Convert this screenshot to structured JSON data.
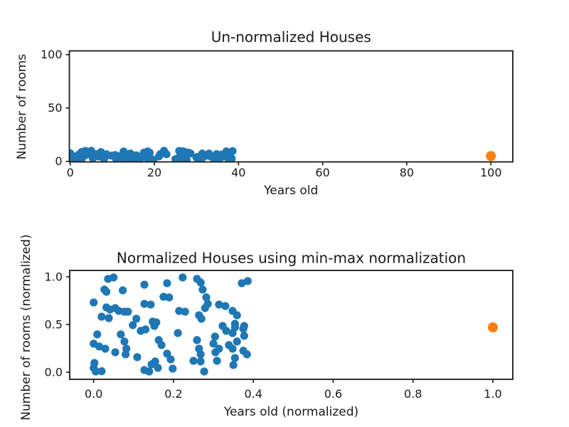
{
  "figure": {
    "background": "#ffffff",
    "description": "Two stacked scatter subplots comparing un-normalized and min-max normalized house data"
  },
  "colors": {
    "houses_blue": "#1f77b4",
    "outlier_orange": "#ff7f0e",
    "axis_black": "#1a1a1a"
  },
  "chart_data": [
    {
      "type": "scatter",
      "title": "Un-normalized Houses",
      "xlabel": "Years old",
      "ylabel": "Number of rooms",
      "xlim": [
        -0.2,
        105.2
      ],
      "ylim": [
        -0.5,
        103.5
      ],
      "xticks": [
        0,
        20,
        40,
        60,
        80,
        100
      ],
      "xtick_labels": [
        "0",
        "20",
        "40",
        "60",
        "80",
        "100"
      ],
      "yticks": [
        0,
        50,
        100
      ],
      "ytick_labels": [
        "0",
        "50",
        "100"
      ],
      "grid": false,
      "legend": "none",
      "series": [
        {
          "name": "houses",
          "color": "#1f77b4",
          "marker_radius": 5.6,
          "points": [
            [
              3.6,
              9.8
            ],
            [
              5.0,
              9.9
            ],
            [
              2.7,
              8.8
            ],
            [
              3.2,
              8.6
            ],
            [
              7.3,
              8.7
            ],
            [
              0.0,
              7.6
            ],
            [
              12.7,
              9.3
            ],
            [
              18.4,
              9.4
            ],
            [
              22.3,
              9.9
            ],
            [
              25.9,
              9.8
            ],
            [
              26.8,
              9.5
            ],
            [
              27.3,
              8.8
            ],
            [
              37.1,
              9.4
            ],
            [
              38.6,
              9.6
            ],
            [
              17.5,
              8.1
            ],
            [
              18.9,
              8.1
            ],
            [
              28.2,
              8.1
            ],
            [
              12.7,
              7.4
            ],
            [
              14.3,
              7.4
            ],
            [
              3.2,
              7.1
            ],
            [
              4.1,
              6.9
            ],
            [
              5.4,
              7.0
            ],
            [
              6.3,
              6.8
            ],
            [
              7.7,
              6.7
            ],
            [
              8.6,
              6.7
            ],
            [
              2.0,
              6.2
            ],
            [
              3.8,
              6.1
            ],
            [
              21.4,
              6.8
            ],
            [
              22.9,
              6.7
            ],
            [
              26.4,
              6.4
            ],
            [
              27.0,
              6.0
            ],
            [
              27.9,
              7.0
            ],
            [
              28.6,
              7.4
            ],
            [
              31.4,
              7.4
            ],
            [
              33.0,
              7.2
            ],
            [
              34.8,
              6.8
            ],
            [
              35.9,
              6.4
            ],
            [
              10.7,
              6.0
            ],
            [
              14.8,
              5.8
            ],
            [
              15.7,
              5.7
            ],
            [
              35.4,
              5.6
            ],
            [
              37.7,
              5.4
            ],
            [
              0.9,
              4.6
            ],
            [
              0.0,
              3.7
            ],
            [
              1.4,
              3.4
            ],
            [
              2.9,
              3.2
            ],
            [
              0.2,
              1.9
            ],
            [
              0.0,
              1.4
            ],
            [
              0.5,
              1.1
            ],
            [
              2.0,
              1.1
            ],
            [
              5.4,
              2.9
            ],
            [
              6.8,
              4.6
            ],
            [
              7.7,
              3.9
            ],
            [
              8.2,
              3.2
            ],
            [
              8.0,
              2.7
            ],
            [
              10.9,
              2.4
            ],
            [
              11.8,
              4.9
            ],
            [
              13.0,
              5.0
            ],
            [
              15.2,
              5.4
            ],
            [
              9.8,
              5.4
            ],
            [
              16.3,
              4.0
            ],
            [
              17.0,
              3.6
            ],
            [
              15.4,
              2.0
            ],
            [
              14.5,
              1.7
            ],
            [
              12.7,
              1.2
            ],
            [
              13.9,
              1.1
            ],
            [
              16.1,
              1.4
            ],
            [
              18.4,
              2.7
            ],
            [
              19.3,
              2.2
            ],
            [
              19.8,
              1.3
            ],
            [
              21.1,
              4.7
            ],
            [
              25.9,
              4.0
            ],
            [
              26.4,
              3.2
            ],
            [
              26.8,
              2.7
            ],
            [
              25.0,
              2.1
            ],
            [
              26.8,
              2.0
            ],
            [
              27.7,
              1.1
            ],
            [
              30.4,
              4.4
            ],
            [
              30.0,
              3.7
            ],
            [
              30.5,
              2.9
            ],
            [
              31.4,
              3.2
            ],
            [
              30.9,
              2.1
            ],
            [
              32.3,
              5.4
            ],
            [
              33.2,
              4.9
            ],
            [
              34.8,
              4.7
            ],
            [
              35.4,
              5.2
            ],
            [
              33.9,
              3.6
            ],
            [
              34.8,
              3.2
            ],
            [
              35.9,
              3.9
            ],
            [
              37.5,
              5.1
            ],
            [
              37.7,
              4.4
            ],
            [
              38.4,
              2.7
            ],
            [
              37.5,
              3.0
            ],
            [
              35.4,
              2.3
            ],
            [
              35.0,
              1.7
            ]
          ]
        },
        {
          "name": "outlier-house",
          "color": "#ff7f0e",
          "marker_radius": 7,
          "points": [
            [
              100,
              5
            ]
          ]
        }
      ]
    },
    {
      "type": "scatter",
      "title": "Normalized Houses using min-max normalization",
      "xlabel": "Years old (normalized)",
      "ylabel": "Number of rooms (normalized)",
      "xlim": [
        -0.06,
        1.05
      ],
      "ylim": [
        -0.075,
        1.067
      ],
      "xticks": [
        0.0,
        0.2,
        0.4,
        0.6,
        0.8,
        1.0
      ],
      "xtick_labels": [
        "0.0",
        "0.2",
        "0.4",
        "0.6",
        "0.8",
        "1.0"
      ],
      "yticks": [
        0.0,
        0.5,
        1.0
      ],
      "ytick_labels": [
        "0.0",
        "0.5",
        "1.0"
      ],
      "grid": false,
      "legend": "none",
      "series": [
        {
          "name": "houses-normalized",
          "color": "#1f77b4",
          "marker_radius": 5.6,
          "points": [
            [
              0.036,
              0.978
            ],
            [
              0.05,
              0.993
            ],
            [
              0.027,
              0.866
            ],
            [
              0.032,
              0.843
            ],
            [
              0.073,
              0.858
            ],
            [
              0.0,
              0.731
            ],
            [
              0.127,
              0.918
            ],
            [
              0.184,
              0.933
            ],
            [
              0.223,
              0.993
            ],
            [
              0.259,
              0.978
            ],
            [
              0.268,
              0.94
            ],
            [
              0.273,
              0.866
            ],
            [
              0.371,
              0.933
            ],
            [
              0.386,
              0.955
            ],
            [
              0.175,
              0.791
            ],
            [
              0.189,
              0.784
            ],
            [
              0.282,
              0.784
            ],
            [
              0.127,
              0.716
            ],
            [
              0.143,
              0.709
            ],
            [
              0.032,
              0.679
            ],
            [
              0.041,
              0.657
            ],
            [
              0.054,
              0.672
            ],
            [
              0.063,
              0.642
            ],
            [
              0.077,
              0.634
            ],
            [
              0.086,
              0.634
            ],
            [
              0.02,
              0.582
            ],
            [
              0.038,
              0.567
            ],
            [
              0.214,
              0.642
            ],
            [
              0.229,
              0.634
            ],
            [
              0.264,
              0.597
            ],
            [
              0.27,
              0.56
            ],
            [
              0.279,
              0.672
            ],
            [
              0.286,
              0.716
            ],
            [
              0.314,
              0.709
            ],
            [
              0.33,
              0.694
            ],
            [
              0.348,
              0.642
            ],
            [
              0.359,
              0.597
            ],
            [
              0.107,
              0.56
            ],
            [
              0.148,
              0.53
            ],
            [
              0.157,
              0.522
            ],
            [
              0.354,
              0.507
            ],
            [
              0.377,
              0.485
            ],
            [
              0.009,
              0.396
            ],
            [
              0.0,
              0.299
            ],
            [
              0.014,
              0.269
            ],
            [
              0.029,
              0.246
            ],
            [
              0.002,
              0.097
            ],
            [
              0.0,
              0.045
            ],
            [
              0.005,
              0.007
            ],
            [
              0.02,
              0.01
            ],
            [
              0.054,
              0.209
            ],
            [
              0.068,
              0.396
            ],
            [
              0.077,
              0.321
            ],
            [
              0.082,
              0.246
            ],
            [
              0.08,
              0.187
            ],
            [
              0.109,
              0.157
            ],
            [
              0.118,
              0.433
            ],
            [
              0.13,
              0.448
            ],
            [
              0.152,
              0.485
            ],
            [
              0.098,
              0.493
            ],
            [
              0.163,
              0.336
            ],
            [
              0.17,
              0.284
            ],
            [
              0.154,
              0.112
            ],
            [
              0.145,
              0.082
            ],
            [
              0.127,
              0.022
            ],
            [
              0.139,
              0.007
            ],
            [
              0.161,
              0.045
            ],
            [
              0.184,
              0.194
            ],
            [
              0.193,
              0.134
            ],
            [
              0.198,
              0.037
            ],
            [
              0.211,
              0.41
            ],
            [
              0.259,
              0.336
            ],
            [
              0.264,
              0.246
            ],
            [
              0.268,
              0.187
            ],
            [
              0.25,
              0.119
            ],
            [
              0.268,
              0.112
            ],
            [
              0.277,
              0.007
            ],
            [
              0.304,
              0.373
            ],
            [
              0.3,
              0.299
            ],
            [
              0.305,
              0.209
            ],
            [
              0.314,
              0.246
            ],
            [
              0.309,
              0.119
            ],
            [
              0.323,
              0.485
            ],
            [
              0.332,
              0.433
            ],
            [
              0.348,
              0.41
            ],
            [
              0.354,
              0.47
            ],
            [
              0.339,
              0.284
            ],
            [
              0.348,
              0.246
            ],
            [
              0.359,
              0.321
            ],
            [
              0.375,
              0.455
            ],
            [
              0.377,
              0.381
            ],
            [
              0.384,
              0.187
            ],
            [
              0.375,
              0.224
            ],
            [
              0.354,
              0.149
            ],
            [
              0.35,
              0.075
            ]
          ]
        },
        {
          "name": "outlier-house-normalized",
          "color": "#ff7f0e",
          "marker_radius": 7,
          "points": [
            [
              1.0,
              0.47
            ]
          ]
        }
      ]
    }
  ]
}
